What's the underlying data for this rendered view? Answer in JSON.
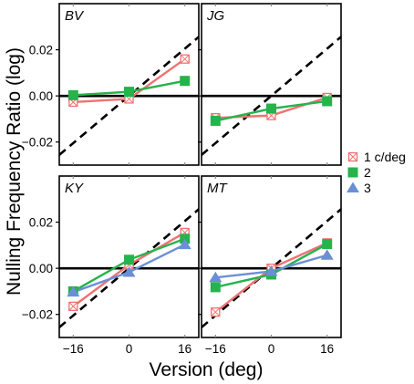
{
  "chart_data": {
    "type": "line",
    "ylabel": "Nulling Frequency Ratio (log)",
    "xlabel": "Version (deg)",
    "xlim": [
      -20,
      20
    ],
    "ylim": [
      -0.03,
      0.04
    ],
    "xticks": [
      -16,
      0,
      16
    ],
    "xtick_labels": [
      "−16",
      "0",
      "16"
    ],
    "yticks": [
      -0.02,
      0.0,
      0.02
    ],
    "ytick_labels": [
      "−0.02",
      "0.00",
      "0.02"
    ],
    "reference_line": {
      "label": "",
      "style": "dashed",
      "slope_per_deg": 0.00128
    },
    "zero_line": true,
    "legend": {
      "placement": "right-middle",
      "entries": [
        {
          "label": "1 c/deg",
          "color": "#f07171",
          "marker": "square-x"
        },
        {
          "label": "2",
          "color": "#25b34b",
          "marker": "square"
        },
        {
          "label": "3",
          "color": "#6b8fd6",
          "marker": "triangle"
        }
      ]
    },
    "panels": [
      {
        "label": "BV",
        "series": [
          {
            "name": "1 c/deg",
            "x": [
              -16,
              0,
              16
            ],
            "y": [
              -0.0027,
              -0.0013,
              0.016
            ]
          },
          {
            "name": "2",
            "x": [
              -16,
              0,
              16
            ],
            "y": [
              0.0003,
              0.0018,
              0.0065
            ]
          }
        ]
      },
      {
        "label": "JG",
        "series": [
          {
            "name": "1 c/deg",
            "x": [
              -16,
              0,
              16
            ],
            "y": [
              -0.0095,
              -0.0085,
              -0.0007
            ]
          },
          {
            "name": "2",
            "x": [
              -16,
              0,
              16
            ],
            "y": [
              -0.0108,
              -0.0055,
              -0.0023
            ]
          }
        ]
      },
      {
        "label": "KY",
        "series": [
          {
            "name": "1 c/deg",
            "x": [
              -16,
              0,
              16
            ],
            "y": [
              -0.0165,
              0.0015,
              0.0155
            ]
          },
          {
            "name": "2",
            "x": [
              -16,
              0,
              16
            ],
            "y": [
              -0.01,
              0.0037,
              0.0128
            ]
          },
          {
            "name": "3",
            "x": [
              -16,
              0,
              16
            ],
            "y": [
              -0.0103,
              -0.0017,
              0.0103
            ]
          }
        ]
      },
      {
        "label": "MT",
        "series": [
          {
            "name": "1 c/deg",
            "x": [
              -16,
              0,
              16
            ],
            "y": [
              -0.019,
              0.0,
              0.011
            ]
          },
          {
            "name": "2",
            "x": [
              -16,
              0,
              16
            ],
            "y": [
              -0.0082,
              -0.0027,
              0.0105
            ]
          },
          {
            "name": "3",
            "x": [
              -16,
              0,
              16
            ],
            "y": [
              -0.004,
              -0.0013,
              0.0057
            ]
          }
        ]
      }
    ]
  }
}
